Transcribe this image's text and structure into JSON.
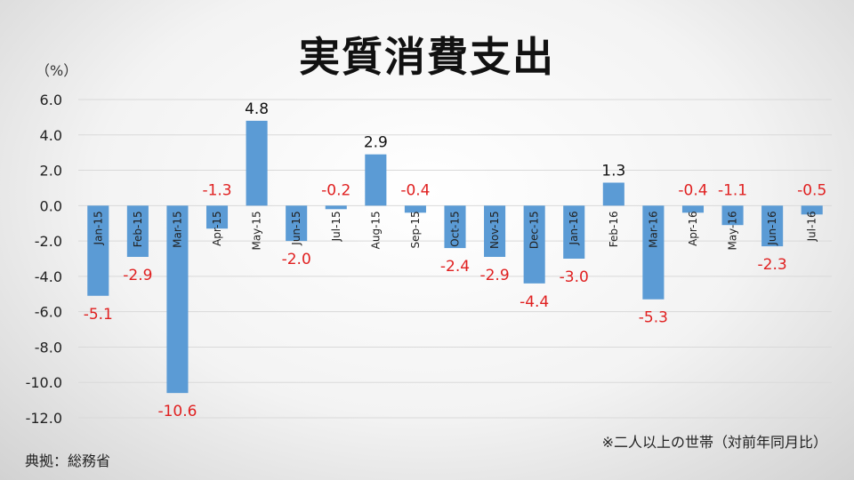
{
  "title": "実質消費支出",
  "unit_label": "（%）",
  "note": "※二人以上の世帯（対前年同月比）",
  "source": "典拠：総務省",
  "chart_data": {
    "type": "bar",
    "categories": [
      "Jan-15",
      "Feb-15",
      "Mar-15",
      "Apr-15",
      "May-15",
      "Jun-15",
      "Jul-15",
      "Aug-15",
      "Sep-15",
      "Oct-15",
      "Nov-15",
      "Dec-15",
      "Jan-16",
      "Feb-16",
      "Mar-16",
      "Apr-16",
      "May-16",
      "Jun-16",
      "Jul-16"
    ],
    "values": [
      -5.1,
      -2.9,
      -10.6,
      -1.3,
      4.8,
      -2.0,
      -0.2,
      2.9,
      -0.4,
      -2.4,
      -2.9,
      -4.4,
      -3.0,
      1.3,
      -5.3,
      -0.4,
      -1.1,
      -2.3,
      -0.5
    ],
    "value_labels": [
      "-5.1",
      "-2.9",
      "-10.6",
      "-1.3",
      "4.8",
      "-2.0",
      "-0.2",
      "2.9",
      "-0.4",
      "-2.4",
      "-2.9",
      "-4.4",
      "-3.0",
      "1.3",
      "-5.3",
      "-0.4",
      "-1.1",
      "-2.3",
      "-0.5"
    ],
    "yticks": [
      "6.0",
      "4.0",
      "2.0",
      "0.0",
      "-2.0",
      "-4.0",
      "-6.0",
      "-8.0",
      "-10.0",
      "-12.0"
    ],
    "ylim": [
      -12,
      6
    ],
    "grid": true,
    "colors": {
      "bar": "#5b9bd5",
      "positive_label": "#111111",
      "negative_label": "#e02020",
      "grid": "#d9d9d9"
    }
  }
}
